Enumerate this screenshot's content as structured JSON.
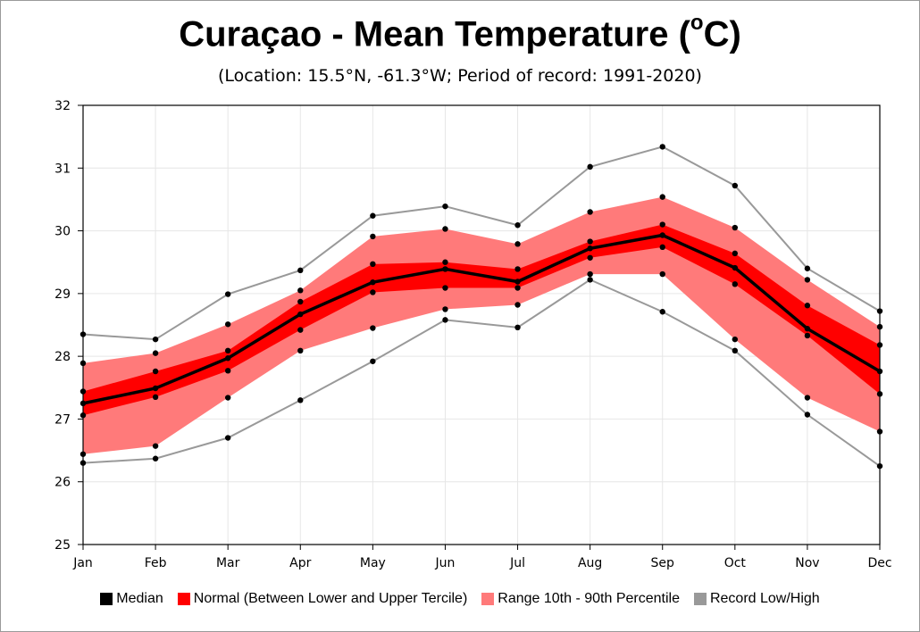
{
  "title": {
    "main": "Curaçao - Mean Temperature (",
    "sup": "o",
    "end": "C)"
  },
  "subtitle": "(Location: 15.5°N, -61.3°W; Period of record: 1991-2020)",
  "legend": {
    "median": "Median",
    "normal": "Normal (Between Lower and Upper Tercile)",
    "range": "Range 10th - 90th Percentile",
    "record": "Record Low/High"
  },
  "colors": {
    "median": "#000000",
    "normal": "#ff0000",
    "range": "#ff7a7a",
    "record": "#999999",
    "grid": "#e6e6e6"
  },
  "chart_data": {
    "type": "area",
    "categories": [
      "Jan",
      "Feb",
      "Mar",
      "Apr",
      "May",
      "Jun",
      "Jul",
      "Aug",
      "Sep",
      "Oct",
      "Nov",
      "Dec"
    ],
    "ylim": [
      25,
      32
    ],
    "yticks": [
      25,
      26,
      27,
      28,
      29,
      30,
      31,
      32
    ],
    "grid": true,
    "legend_position": "bottom",
    "series": [
      {
        "name": "Record Low/High",
        "low": [
          26.3,
          26.37,
          26.7,
          27.3,
          27.92,
          28.58,
          28.46,
          29.22,
          28.71,
          28.09,
          27.07,
          26.25
        ],
        "high": [
          28.35,
          28.27,
          28.99,
          29.37,
          30.24,
          30.39,
          30.09,
          31.02,
          31.34,
          30.72,
          29.4,
          28.72
        ]
      },
      {
        "name": "Range 10th - 90th Percentile",
        "low": [
          26.44,
          26.57,
          27.34,
          28.09,
          28.45,
          28.75,
          28.82,
          29.31,
          29.31,
          28.27,
          27.34,
          26.8
        ],
        "high": [
          27.89,
          28.05,
          28.51,
          29.05,
          29.91,
          30.03,
          29.79,
          30.3,
          30.54,
          30.05,
          29.22,
          28.47
        ]
      },
      {
        "name": "Normal (Between Lower and Upper Tercile)",
        "low": [
          27.06,
          27.35,
          27.77,
          28.42,
          29.02,
          29.09,
          29.09,
          29.57,
          29.74,
          29.15,
          28.33,
          27.4
        ],
        "high": [
          27.44,
          27.76,
          28.09,
          28.87,
          29.47,
          29.5,
          29.39,
          29.83,
          30.1,
          29.64,
          28.81,
          28.18
        ]
      },
      {
        "name": "Median",
        "values": [
          27.25,
          27.49,
          27.97,
          28.67,
          29.18,
          29.39,
          29.19,
          29.72,
          29.93,
          29.41,
          28.44,
          27.76
        ]
      }
    ]
  }
}
